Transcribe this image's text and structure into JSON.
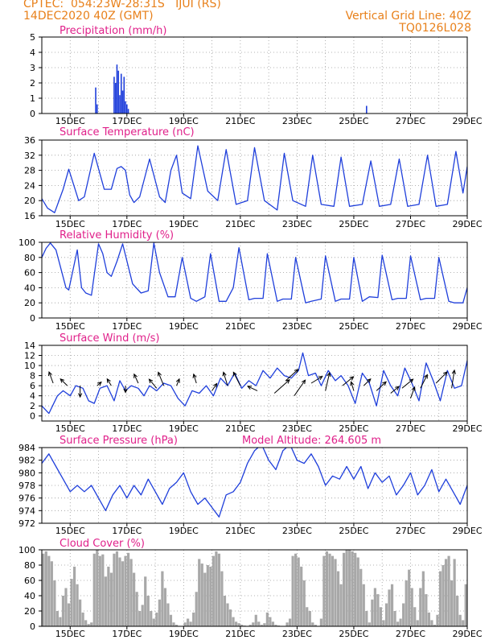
{
  "header": {
    "line1": "CPTEC:  054:23W-28:31S   IJUI (RS)",
    "line2": "14DEC2020 40Z (GMT)",
    "right1": "Vertical Grid Line: 40Z",
    "right2": "TQ0126L028"
  },
  "colors": {
    "header": "#e8801a",
    "title": "#e0208a",
    "line": "#1f3fdb",
    "cloud": "#a8a8a8",
    "arrow": "#000000"
  },
  "date_ticks": [
    "15DEC",
    "17DEC",
    "19DEC",
    "21DEC",
    "23DEC",
    "25DEC",
    "27DEC",
    "29DEC"
  ],
  "chart_data": [
    {
      "type": "bar",
      "title": "Precipitation (mm/h)",
      "x_range": [
        14.0,
        29.0
      ],
      "ylim": [
        0,
        5
      ],
      "yticks": [
        0,
        1,
        2,
        3,
        4,
        5
      ],
      "x": [
        15.9,
        15.95,
        16.55,
        16.6,
        16.65,
        16.7,
        16.75,
        16.8,
        16.85,
        16.9,
        16.95,
        17.0,
        17.05,
        25.45
      ],
      "values": [
        1.7,
        0.6,
        2.4,
        2.0,
        3.2,
        2.8,
        1.2,
        2.6,
        1.5,
        2.4,
        0.8,
        0.6,
        0.3,
        0.5
      ]
    },
    {
      "type": "line",
      "title": "Surface Temperature (nC)",
      "x_range": [
        14.0,
        29.0
      ],
      "ylim": [
        16,
        36
      ],
      "yticks": [
        16,
        20,
        24,
        28,
        32,
        36
      ],
      "x": [
        14.0,
        14.2,
        14.45,
        14.75,
        14.95,
        15.3,
        15.5,
        15.85,
        16.2,
        16.45,
        16.65,
        16.8,
        16.95,
        17.1,
        17.25,
        17.45,
        17.8,
        18.15,
        18.35,
        18.55,
        18.75,
        18.95,
        19.25,
        19.5,
        19.85,
        20.2,
        20.5,
        20.85,
        21.25,
        21.5,
        21.85,
        22.3,
        22.55,
        22.85,
        23.3,
        23.55,
        23.85,
        24.3,
        24.55,
        24.85,
        25.3,
        25.6,
        25.9,
        26.3,
        26.6,
        26.9,
        27.3,
        27.6,
        27.9,
        28.3,
        28.6,
        28.85,
        29.0
      ],
      "values": [
        20.5,
        18.0,
        16.8,
        23.0,
        28.3,
        20.0,
        21.0,
        32.5,
        23.0,
        23.0,
        28.5,
        29.0,
        28.0,
        21.5,
        19.5,
        21.0,
        31.0,
        21.0,
        19.5,
        28.0,
        32.0,
        22.0,
        20.5,
        34.5,
        22.5,
        20.0,
        33.5,
        19.0,
        20.0,
        34.0,
        20.0,
        17.5,
        32.5,
        20.0,
        18.5,
        32.0,
        19.0,
        18.5,
        31.5,
        18.5,
        19.0,
        30.5,
        18.5,
        19.0,
        31.0,
        18.5,
        19.0,
        32.0,
        18.5,
        19.0,
        33.0,
        22.0,
        29.0
      ]
    },
    {
      "type": "line",
      "title": "Relative Humidity (%)",
      "x_range": [
        14.0,
        29.0
      ],
      "ylim": [
        0,
        100
      ],
      "yticks": [
        0,
        20,
        40,
        60,
        80,
        100
      ],
      "x": [
        14.0,
        14.15,
        14.3,
        14.5,
        14.85,
        14.95,
        15.25,
        15.4,
        15.55,
        15.75,
        16.0,
        16.15,
        16.3,
        16.45,
        16.65,
        16.85,
        17.2,
        17.5,
        17.75,
        17.95,
        18.15,
        18.45,
        18.7,
        18.95,
        19.25,
        19.45,
        19.75,
        19.95,
        20.25,
        20.5,
        20.75,
        20.95,
        21.3,
        21.5,
        21.8,
        21.95,
        22.3,
        22.5,
        22.8,
        22.95,
        23.3,
        23.5,
        23.85,
        24.0,
        24.35,
        24.55,
        24.85,
        25.0,
        25.3,
        25.55,
        25.85,
        26.0,
        26.35,
        26.55,
        26.85,
        27.0,
        27.35,
        27.55,
        27.85,
        28.0,
        28.35,
        28.55,
        28.85,
        29.0
      ],
      "values": [
        80.0,
        92.0,
        99.0,
        90.0,
        40.0,
        37.0,
        90.0,
        40.0,
        33.0,
        30.0,
        98.0,
        85.0,
        60.0,
        55.0,
        75.0,
        98.0,
        45.0,
        33.0,
        36.0,
        99.0,
        60.0,
        28.0,
        28.0,
        80.0,
        26.0,
        22.0,
        28.0,
        85.0,
        22.0,
        22.0,
        40.0,
        93.0,
        24.0,
        26.0,
        26.0,
        85.0,
        22.0,
        25.0,
        25.0,
        80.0,
        20.0,
        22.0,
        25.0,
        82.0,
        22.0,
        25.0,
        25.0,
        80.0,
        22.0,
        28.0,
        27.0,
        83.0,
        24.0,
        26.0,
        26.0,
        82.0,
        24.0,
        26.0,
        26.0,
        80.0,
        22.0,
        20.0,
        20.0,
        40.0
      ]
    },
    {
      "type": "line",
      "title": "Surface Wind (m/s)",
      "x_range": [
        14.0,
        29.0
      ],
      "ylim": [
        -1,
        14
      ],
      "yticks": [
        0,
        2,
        4,
        6,
        8,
        10,
        12,
        14
      ],
      "x": [
        14.0,
        14.25,
        14.55,
        14.75,
        15.0,
        15.2,
        15.45,
        15.65,
        15.85,
        16.05,
        16.3,
        16.55,
        16.75,
        16.95,
        17.15,
        17.4,
        17.6,
        17.8,
        18.05,
        18.3,
        18.55,
        18.8,
        19.05,
        19.3,
        19.55,
        19.8,
        20.05,
        20.3,
        20.55,
        20.8,
        21.05,
        21.3,
        21.55,
        21.8,
        22.05,
        22.3,
        22.55,
        22.8,
        23.05,
        23.2,
        23.4,
        23.65,
        23.85,
        24.1,
        24.35,
        24.55,
        24.8,
        25.05,
        25.3,
        25.55,
        25.8,
        26.05,
        26.3,
        26.55,
        26.8,
        27.05,
        27.3,
        27.55,
        27.8,
        28.05,
        28.3,
        28.55,
        28.8,
        29.0
      ],
      "values": [
        2.0,
        0.5,
        4.0,
        5.0,
        4.0,
        6.0,
        5.5,
        3.0,
        2.5,
        5.5,
        6.0,
        3.0,
        7.0,
        5.0,
        6.0,
        5.5,
        4.0,
        6.0,
        5.0,
        6.5,
        6.0,
        3.5,
        2.0,
        5.0,
        4.5,
        6.0,
        4.0,
        7.5,
        6.0,
        8.5,
        5.5,
        7.0,
        6.0,
        9.0,
        7.5,
        9.5,
        8.0,
        7.5,
        9.0,
        12.5,
        8.0,
        8.5,
        6.0,
        9.0,
        7.0,
        8.0,
        6.0,
        2.5,
        8.5,
        6.5,
        2.0,
        9.0,
        6.0,
        4.0,
        9.5,
        6.5,
        3.0,
        10.5,
        7.0,
        3.0,
        9.0,
        5.5,
        6.0,
        11.0
      ],
      "vectors": [
        {
          "x": 14.4,
          "y": 6.5,
          "dx": -0.3,
          "dy": 2.5
        },
        {
          "x": 14.9,
          "y": 6.0,
          "dx": -0.5,
          "dy": 1.5
        },
        {
          "x": 15.35,
          "y": 6.0,
          "dx": 0.0,
          "dy": -2.5
        },
        {
          "x": 15.95,
          "y": 6.0,
          "dx": 0.3,
          "dy": 0.8
        },
        {
          "x": 16.45,
          "y": 6.0,
          "dx": -0.3,
          "dy": 1.5
        },
        {
          "x": 16.95,
          "y": 6.0,
          "dx": 0.0,
          "dy": -1.5
        },
        {
          "x": 17.4,
          "y": 6.5,
          "dx": -0.3,
          "dy": 2.0
        },
        {
          "x": 18.05,
          "y": 5.5,
          "dx": -0.55,
          "dy": 2.0
        },
        {
          "x": 18.3,
          "y": 6.0,
          "dx": -0.4,
          "dy": 3.0
        },
        {
          "x": 18.75,
          "y": 6.0,
          "dx": 0.2,
          "dy": 1.5
        },
        {
          "x": 19.45,
          "y": 6.5,
          "dx": -0.2,
          "dy": 2.0
        },
        {
          "x": 20.0,
          "y": 5.0,
          "dx": 0.35,
          "dy": 1.6
        },
        {
          "x": 20.55,
          "y": 6.0,
          "dx": -0.3,
          "dy": 3.0
        },
        {
          "x": 21.0,
          "y": 6.0,
          "dx": -0.5,
          "dy": 3.0
        },
        {
          "x": 21.6,
          "y": 5.0,
          "dx": -0.7,
          "dy": 1.0
        },
        {
          "x": 22.2,
          "y": 4.5,
          "dx": 1.1,
          "dy": 3.0
        },
        {
          "x": 22.6,
          "y": 7.0,
          "dx": 0.9,
          "dy": 2.5
        },
        {
          "x": 22.9,
          "y": 4.0,
          "dx": 0.8,
          "dy": 3.5
        },
        {
          "x": 23.5,
          "y": 6.5,
          "dx": 0.8,
          "dy": 1.5
        },
        {
          "x": 24.0,
          "y": 5.0,
          "dx": 0.3,
          "dy": 4.0
        },
        {
          "x": 24.6,
          "y": 6.0,
          "dx": 0.8,
          "dy": 2.0
        },
        {
          "x": 25.0,
          "y": 5.0,
          "dx": -0.2,
          "dy": 2.0
        },
        {
          "x": 25.35,
          "y": 6.0,
          "dx": 0.5,
          "dy": 1.5
        },
        {
          "x": 25.8,
          "y": 5.0,
          "dx": 0.7,
          "dy": 2.0
        },
        {
          "x": 26.3,
          "y": 4.5,
          "dx": 0.6,
          "dy": 1.5
        },
        {
          "x": 26.7,
          "y": 5.5,
          "dx": 0.8,
          "dy": 2.0
        },
        {
          "x": 27.0,
          "y": 3.5,
          "dx": 0.3,
          "dy": 2.5
        },
        {
          "x": 27.35,
          "y": 5.5,
          "dx": 0.5,
          "dy": 3.0
        },
        {
          "x": 27.9,
          "y": 6.5,
          "dx": 0.8,
          "dy": 2.5
        },
        {
          "x": 28.45,
          "y": 5.5,
          "dx": 0.2,
          "dy": 4.0
        }
      ]
    },
    {
      "type": "line",
      "title": "Surface Pressure (hPa)",
      "annotation": "Model Altitude: 264.605 m",
      "x_range": [
        14.0,
        29.0
      ],
      "ylim": [
        972,
        984
      ],
      "yticks": [
        972,
        974,
        976,
        978,
        980,
        982,
        984
      ],
      "x": [
        14.0,
        14.25,
        14.5,
        14.75,
        15.0,
        15.25,
        15.5,
        15.75,
        16.0,
        16.25,
        16.5,
        16.75,
        17.0,
        17.25,
        17.5,
        17.75,
        18.0,
        18.25,
        18.5,
        18.75,
        19.0,
        19.25,
        19.5,
        19.75,
        20.0,
        20.25,
        20.5,
        20.75,
        21.0,
        21.25,
        21.5,
        21.75,
        22.0,
        22.25,
        22.5,
        22.75,
        23.0,
        23.25,
        23.5,
        23.75,
        24.0,
        24.25,
        24.5,
        24.75,
        25.0,
        25.25,
        25.5,
        25.75,
        26.0,
        26.25,
        26.5,
        26.75,
        27.0,
        27.25,
        27.5,
        27.75,
        28.0,
        28.25,
        28.5,
        28.75,
        29.0
      ],
      "values": [
        981.5,
        983.0,
        981.0,
        979.0,
        977.0,
        978.0,
        977.0,
        978.0,
        976.0,
        974.0,
        976.5,
        978.0,
        976.0,
        978.0,
        976.5,
        979.0,
        977.0,
        975.0,
        977.5,
        978.5,
        980.0,
        977.0,
        975.0,
        976.0,
        974.5,
        973.0,
        976.5,
        977.0,
        978.5,
        981.5,
        983.5,
        984.5,
        982.0,
        980.5,
        983.5,
        984.5,
        982.0,
        981.5,
        983.0,
        981.0,
        978.0,
        979.5,
        979.0,
        981.0,
        979.0,
        981.0,
        977.5,
        980.0,
        978.5,
        979.5,
        976.5,
        978.0,
        980.0,
        976.5,
        978.0,
        980.5,
        977.0,
        979.0,
        977.0,
        975.0,
        978.0
      ]
    },
    {
      "type": "bar",
      "title": "Cloud Cover (%)",
      "x_range": [
        14.0,
        29.0
      ],
      "ylim": [
        0,
        100
      ],
      "yticks": [
        0,
        20,
        40,
        60,
        80,
        100
      ],
      "x": [
        14.05,
        14.15,
        14.25,
        14.35,
        14.45,
        14.55,
        14.65,
        14.75,
        14.85,
        14.95,
        15.05,
        15.15,
        15.25,
        15.35,
        15.45,
        15.55,
        15.65,
        15.75,
        15.85,
        15.95,
        16.05,
        16.15,
        16.25,
        16.35,
        16.45,
        16.55,
        16.65,
        16.75,
        16.85,
        16.95,
        17.05,
        17.15,
        17.25,
        17.35,
        17.45,
        17.55,
        17.65,
        17.75,
        17.85,
        17.95,
        18.05,
        18.15,
        18.25,
        18.35,
        18.45,
        18.55,
        18.65,
        18.75,
        18.85,
        18.95,
        19.05,
        19.15,
        19.25,
        19.35,
        19.45,
        19.55,
        19.65,
        19.75,
        19.85,
        19.95,
        20.05,
        20.15,
        20.25,
        20.35,
        20.45,
        20.55,
        20.65,
        20.75,
        20.85,
        20.95,
        21.05,
        21.15,
        21.25,
        21.35,
        21.45,
        21.55,
        21.65,
        21.75,
        21.85,
        21.95,
        22.05,
        22.15,
        22.25,
        22.35,
        22.45,
        22.55,
        22.65,
        22.75,
        22.85,
        22.95,
        23.05,
        23.15,
        23.25,
        23.35,
        23.45,
        23.55,
        23.65,
        23.75,
        23.85,
        23.95,
        24.05,
        24.15,
        24.25,
        24.35,
        24.45,
        24.55,
        24.65,
        24.75,
        24.85,
        24.95,
        25.05,
        25.15,
        25.25,
        25.35,
        25.45,
        25.55,
        25.65,
        25.75,
        25.85,
        25.95,
        26.05,
        26.15,
        26.25,
        26.35,
        26.45,
        26.55,
        26.65,
        26.75,
        26.85,
        26.95,
        27.05,
        27.15,
        27.25,
        27.35,
        27.45,
        27.55,
        27.65,
        27.75,
        27.85,
        27.95,
        28.05,
        28.15,
        28.25,
        28.35,
        28.45,
        28.55,
        28.65,
        28.75,
        28.85,
        28.95
      ],
      "values": [
        95,
        98,
        92,
        85,
        60,
        20,
        12,
        40,
        50,
        30,
        62,
        78,
        55,
        35,
        18,
        8,
        3,
        5,
        95,
        100,
        92,
        94,
        65,
        78,
        70,
        95,
        98,
        90,
        85,
        92,
        96,
        88,
        70,
        45,
        20,
        28,
        65,
        40,
        20,
        10,
        18,
        35,
        72,
        50,
        30,
        15,
        5,
        2,
        0,
        0,
        5,
        10,
        6,
        18,
        45,
        88,
        82,
        70,
        80,
        78,
        92,
        98,
        95,
        72,
        40,
        30,
        22,
        12,
        6,
        4,
        2,
        1,
        0,
        2,
        5,
        15,
        6,
        2,
        4,
        18,
        12,
        6,
        2,
        1,
        0,
        0,
        5,
        10,
        92,
        95,
        90,
        78,
        60,
        25,
        20,
        5,
        2,
        0,
        10,
        92,
        98,
        95,
        92,
        88,
        72,
        55,
        96,
        100,
        100,
        98,
        96,
        90,
        75,
        55,
        20,
        5,
        35,
        50,
        42,
        25,
        8,
        30,
        48,
        55,
        20,
        6,
        10,
        30,
        60,
        74,
        50,
        25,
        8,
        50,
        72,
        42,
        18,
        8,
        2,
        15,
        72,
        80,
        88,
        92,
        60,
        88,
        40,
        15,
        8,
        55
      ]
    }
  ]
}
